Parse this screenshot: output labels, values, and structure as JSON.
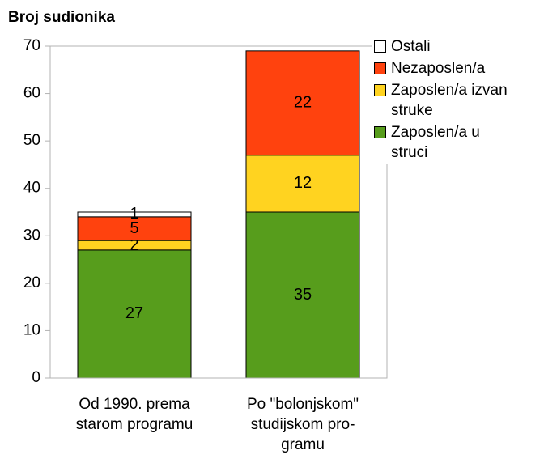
{
  "chart_data": {
    "type": "stacked_bar",
    "title": "Broj sudionika",
    "categories": [
      [
        "Od 1990. prema",
        "starom programu"
      ],
      [
        "Po \"bolonjskom\"",
        "studijskom pro-",
        "gramu"
      ]
    ],
    "series": [
      {
        "name": "Zaposlen/a u struci",
        "color": "#579d1c",
        "values": [
          27,
          35
        ]
      },
      {
        "name": "Zaposlen/a izvan struke",
        "color": "#ffd320",
        "values": [
          2,
          12
        ]
      },
      {
        "name": "Nezaposlen/a",
        "color": "#ff420e",
        "values": [
          5,
          22
        ]
      },
      {
        "name": "Ostali",
        "color": "#ffffff",
        "values": [
          1,
          0
        ]
      }
    ],
    "ylim": [
      0,
      70
    ],
    "yticks": [
      0,
      10,
      20,
      30,
      40,
      50,
      60,
      70
    ],
    "legend": "right"
  }
}
